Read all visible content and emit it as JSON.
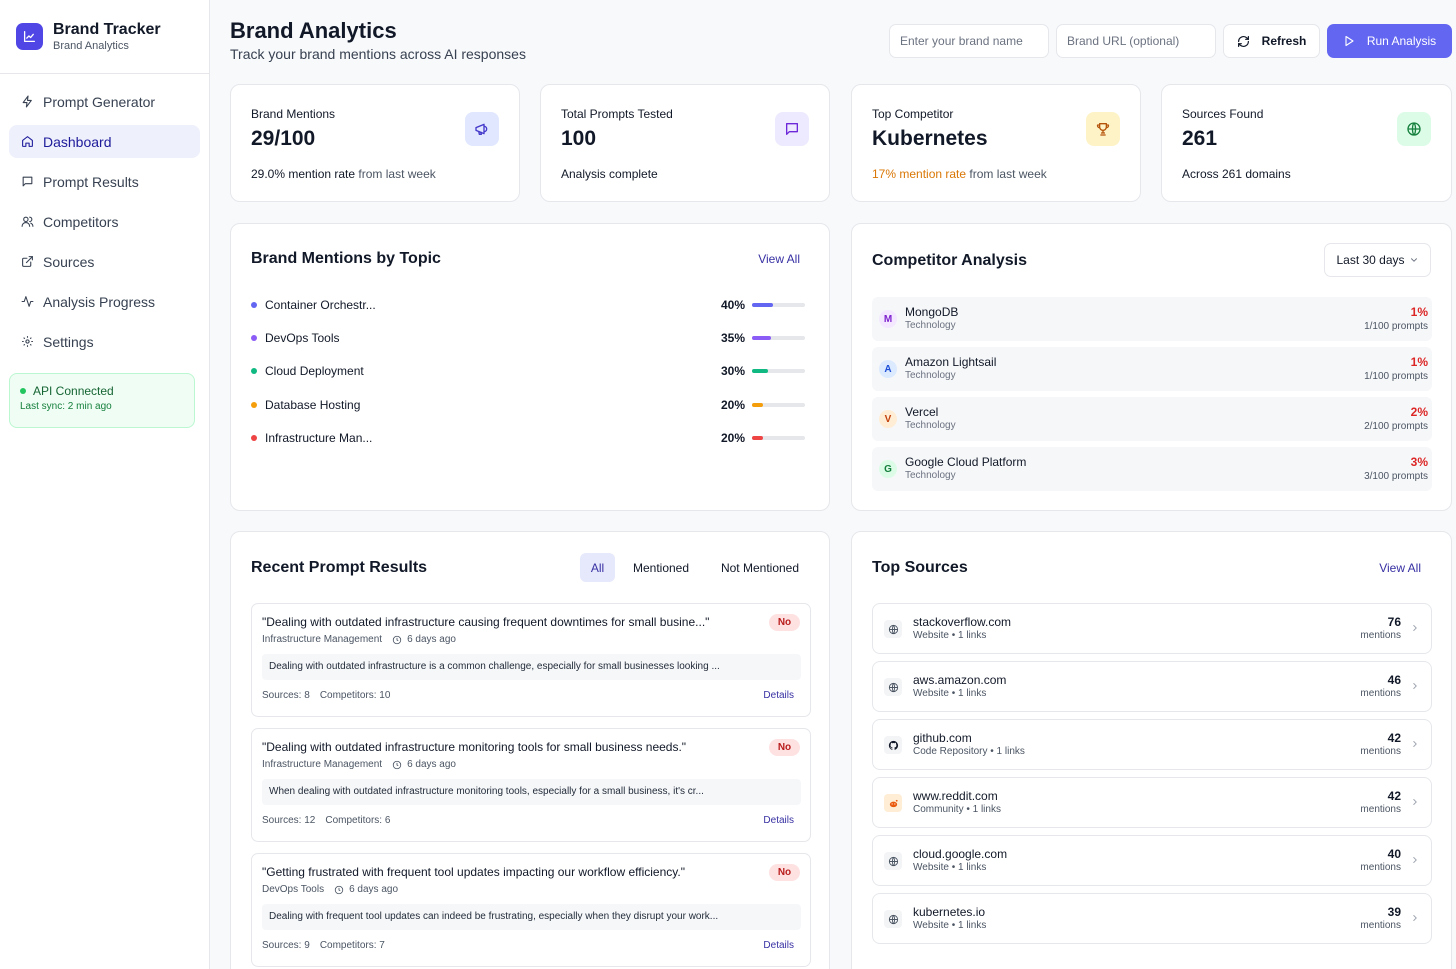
{
  "app": {
    "title": "Brand Tracker",
    "subtitle": "Brand Analytics"
  },
  "sidebar": {
    "items": [
      {
        "label": "Prompt Generator",
        "icon": "zap-icon",
        "active": false
      },
      {
        "label": "Dashboard",
        "icon": "home-icon",
        "active": true
      },
      {
        "label": "Prompt Results",
        "icon": "message-icon",
        "active": false
      },
      {
        "label": "Competitors",
        "icon": "users-icon",
        "active": false
      },
      {
        "label": "Sources",
        "icon": "external-link-icon",
        "active": false
      },
      {
        "label": "Analysis Progress",
        "icon": "activity-icon",
        "active": false
      },
      {
        "label": "Settings",
        "icon": "gear-icon",
        "active": false
      }
    ],
    "api": {
      "status": "API Connected",
      "sync": "Last sync: 2 min ago"
    }
  },
  "header": {
    "title": "Brand Analytics",
    "subtitle": "Track your brand mentions across AI responses",
    "brand_placeholder": "Enter your brand name",
    "url_placeholder": "Brand URL (optional)",
    "refresh_label": "Refresh",
    "run_label": "Run Analysis"
  },
  "stats": [
    {
      "label": "Brand Mentions",
      "value": "29/100",
      "foot_strong": "29.0% mention rate",
      "foot_rest": " from last week",
      "icon": "megaphone-icon"
    },
    {
      "label": "Total Prompts Tested",
      "value": "100",
      "foot_strong": "Analysis complete",
      "foot_rest": "",
      "icon": "message-icon"
    },
    {
      "label": "Top Competitor",
      "value": "Kubernetes",
      "foot_strong": "17% mention rate",
      "foot_rest": " from last week",
      "icon": "trophy-icon"
    },
    {
      "label": "Sources Found",
      "value": "261",
      "foot_strong": "Across 261 domains",
      "foot_rest": "",
      "icon": "globe-icon"
    }
  ],
  "topics": {
    "title": "Brand Mentions by Topic",
    "view_all": "View All",
    "items": [
      {
        "name": "Container Orchestr...",
        "pct_label": "40%",
        "value": 40,
        "color": "#6366f1"
      },
      {
        "name": "DevOps Tools",
        "pct_label": "35%",
        "value": 35,
        "color": "#8b5cf6"
      },
      {
        "name": "Cloud Deployment",
        "pct_label": "30%",
        "value": 30,
        "color": "#10b981"
      },
      {
        "name": "Database Hosting",
        "pct_label": "20%",
        "value": 20,
        "color": "#f59e0b"
      },
      {
        "name": "Infrastructure Man...",
        "pct_label": "20%",
        "value": 20,
        "color": "#ef4444"
      }
    ]
  },
  "competitors": {
    "title": "Competitor Analysis",
    "range": "Last 30 days",
    "items": [
      {
        "initial": "M",
        "name": "MongoDB",
        "category": "Technology",
        "pct": "1%",
        "prompts": "1/100 prompts",
        "bg": "#f3e8ff",
        "fg": "#7e22ce"
      },
      {
        "initial": "A",
        "name": "Amazon Lightsail",
        "category": "Technology",
        "pct": "1%",
        "prompts": "1/100 prompts",
        "bg": "#dbeafe",
        "fg": "#1d4ed8"
      },
      {
        "initial": "V",
        "name": "Vercel",
        "category": "Technology",
        "pct": "2%",
        "prompts": "2/100 prompts",
        "bg": "#ffedd5",
        "fg": "#c2410c"
      },
      {
        "initial": "G",
        "name": "Google Cloud Platform",
        "category": "Technology",
        "pct": "3%",
        "prompts": "3/100 prompts",
        "bg": "#dcfce7",
        "fg": "#15803d"
      }
    ]
  },
  "results": {
    "title": "Recent Prompt Results",
    "filters": [
      "All",
      "Mentioned",
      "Not Mentioned"
    ],
    "items": [
      {
        "question": "\"Dealing with outdated infrastructure causing frequent downtimes for small busine...\"",
        "badge": "No",
        "topic": "Infrastructure Management",
        "time": "6 days ago",
        "preview": "Dealing with outdated infrastructure is a common challenge, especially for small businesses looking ...",
        "sources": "Sources: 8",
        "competitors": "Competitors: 10",
        "details": "Details"
      },
      {
        "question": "\"Dealing with outdated infrastructure monitoring tools for small business needs.\"",
        "badge": "No",
        "topic": "Infrastructure Management",
        "time": "6 days ago",
        "preview": "When dealing with outdated infrastructure monitoring tools, especially for a small business, it's cr...",
        "sources": "Sources: 12",
        "competitors": "Competitors: 6",
        "details": "Details"
      },
      {
        "question": "\"Getting frustrated with frequent tool updates impacting our workflow efficiency.\"",
        "badge": "No",
        "topic": "DevOps Tools",
        "time": "6 days ago",
        "preview": "Dealing with frequent tool updates can indeed be frustrating, especially when they disrupt your work...",
        "sources": "Sources: 9",
        "competitors": "Competitors: 7",
        "details": "Details"
      }
    ]
  },
  "sources": {
    "title": "Top Sources",
    "view_all": "View All",
    "items": [
      {
        "domain": "stackoverflow.com",
        "type": "Website • 1 links",
        "count": "76",
        "unit": "mentions",
        "icon": "globe-icon"
      },
      {
        "domain": "aws.amazon.com",
        "type": "Website • 1 links",
        "count": "46",
        "unit": "mentions",
        "icon": "globe-icon"
      },
      {
        "domain": "github.com",
        "type": "Code Repository • 1 links",
        "count": "42",
        "unit": "mentions",
        "icon": "github-icon"
      },
      {
        "domain": "www.reddit.com",
        "type": "Community • 1 links",
        "count": "42",
        "unit": "mentions",
        "icon": "reddit-icon"
      },
      {
        "domain": "cloud.google.com",
        "type": "Website • 1 links",
        "count": "40",
        "unit": "mentions",
        "icon": "globe-icon"
      },
      {
        "domain": "kubernetes.io",
        "type": "Website • 1 links",
        "count": "39",
        "unit": "mentions",
        "icon": "globe-icon"
      }
    ]
  },
  "colors": {
    "accent": "#6366f1",
    "active_nav": "#eef0fb",
    "danger": "#dc2626",
    "warning": "#d97706",
    "success": "#22c55e"
  }
}
